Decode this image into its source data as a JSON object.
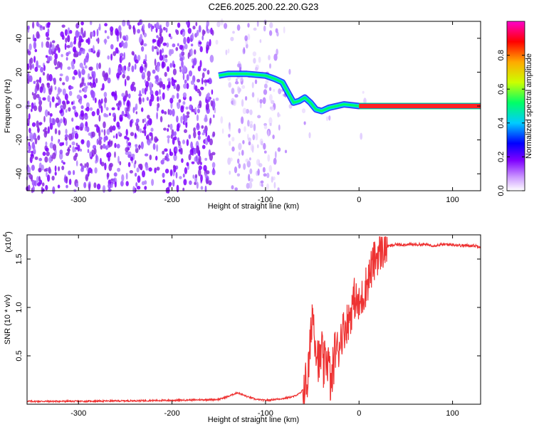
{
  "title": "C2E6.2025.200.22.20.G23",
  "chart_data": [
    {
      "type": "heatmap",
      "xlabel": "Height of straight line (km)",
      "ylabel": "Frequency (Hz)",
      "xlim": [
        -355,
        130
      ],
      "ylim": [
        -50,
        50
      ],
      "x_ticks": [
        -300,
        -200,
        -100,
        0,
        100
      ],
      "y_ticks": [
        -40,
        -20,
        0,
        20,
        40
      ],
      "colorbar": {
        "label": "Normalized spectral amplitude",
        "range": [
          0,
          1
        ],
        "ticks": [
          "0.0",
          "0.2",
          "0.4",
          "0.6",
          "0.8"
        ],
        "colors": [
          "#ffffff",
          "#cc99ff",
          "#7f00ff",
          "#0000ff",
          "#00ccff",
          "#00ff66",
          "#ccff00",
          "#ffaa00",
          "#ff0000",
          "#ff00cc"
        ]
      },
      "signal_track": {
        "x": [
          -150,
          -140,
          -130,
          -120,
          -110,
          -100,
          -90,
          -82,
          -76,
          -70,
          -64,
          -58,
          -52,
          -46,
          -40,
          -32,
          -24,
          -16,
          -8,
          0,
          10,
          40,
          80,
          130
        ],
        "y": [
          18,
          19,
          19,
          19,
          18.5,
          18,
          16,
          14,
          8,
          2,
          3,
          5,
          2,
          -2,
          -3,
          -1,
          0,
          1,
          0.5,
          0,
          0,
          0,
          0,
          0
        ]
      }
    },
    {
      "type": "line",
      "xlabel": "Height of straight line (km)",
      "ylabel": "SNR (10 * v/v)",
      "multiplier": "(x10",
      "multiplier_exp": "4",
      "xlim": [
        -355,
        130
      ],
      "ylim": [
        0,
        1.75
      ],
      "x_ticks": [
        -300,
        -200,
        -100,
        0,
        100
      ],
      "y_ticks": [
        "0.5",
        "1.0",
        "1.5"
      ],
      "color": "#ee3333",
      "series": {
        "x": [
          -355,
          -300,
          -250,
          -200,
          -150,
          -140,
          -130,
          -120,
          -110,
          -100,
          -90,
          -80,
          -70,
          -62,
          -55,
          -52,
          -50,
          -47,
          -45,
          -42,
          -40,
          -38,
          -35,
          -32,
          -30,
          -27,
          -25,
          -22,
          -20,
          -15,
          -10,
          -5,
          0,
          5,
          10,
          15,
          20,
          25,
          30,
          35,
          40,
          50,
          60,
          70,
          80,
          90,
          100,
          110,
          120,
          130
        ],
        "y": [
          0.03,
          0.03,
          0.035,
          0.04,
          0.05,
          0.08,
          0.12,
          0.08,
          0.05,
          0.04,
          0.05,
          0.06,
          0.08,
          0.12,
          0.25,
          0.6,
          1.0,
          0.7,
          0.55,
          0.4,
          0.6,
          0.35,
          0.5,
          0.4,
          0.15,
          0.45,
          0.6,
          0.55,
          0.7,
          0.8,
          0.9,
          1.1,
          1.0,
          1.15,
          1.3,
          1.45,
          1.55,
          1.6,
          1.63,
          1.64,
          1.65,
          1.65,
          1.65,
          1.65,
          1.64,
          1.65,
          1.65,
          1.64,
          1.64,
          1.63
        ]
      }
    }
  ]
}
